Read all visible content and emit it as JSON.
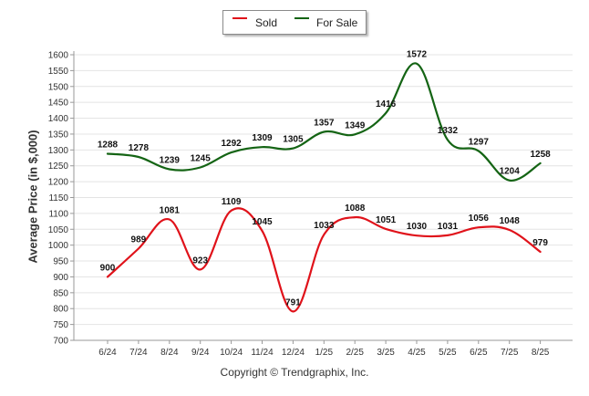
{
  "chart_data": {
    "type": "line",
    "title": "",
    "xlabel": "",
    "ylabel": "Average Price (in $,000)",
    "categories": [
      "6/24",
      "7/24",
      "8/24",
      "9/24",
      "10/24",
      "11/24",
      "12/24",
      "1/25",
      "2/25",
      "3/25",
      "4/25",
      "5/25",
      "6/25",
      "7/25",
      "8/25"
    ],
    "series": [
      {
        "name": "Sold",
        "color": "#e0121a",
        "values": [
          900,
          989,
          1081,
          923,
          1109,
          1045,
          791,
          1033,
          1088,
          1051,
          1030,
          1031,
          1056,
          1048,
          979
        ]
      },
      {
        "name": "For Sale",
        "color": "#146414",
        "values": [
          1288,
          1278,
          1239,
          1245,
          1292,
          1309,
          1305,
          1357,
          1349,
          1416,
          1572,
          1332,
          1297,
          1204,
          1258
        ]
      }
    ],
    "ylim": [
      700,
      1600
    ],
    "yticks": [
      700,
      750,
      800,
      850,
      900,
      950,
      1000,
      1050,
      1100,
      1150,
      1200,
      1250,
      1300,
      1350,
      1400,
      1450,
      1500,
      1550,
      1600
    ],
    "grid": true,
    "legend_position": "top-center"
  },
  "legend": {
    "sold_label": "Sold",
    "forsale_label": "For Sale"
  },
  "footer": {
    "copyright": "Copyright © Trendgraphix, Inc."
  }
}
